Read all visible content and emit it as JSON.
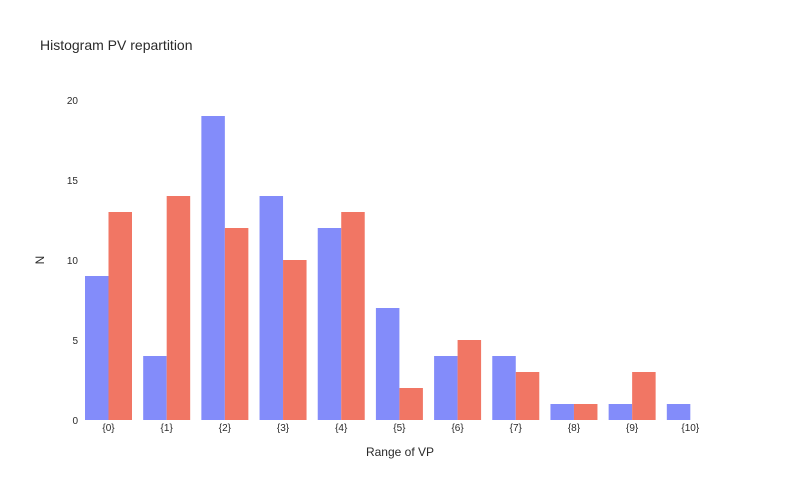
{
  "chart_data": {
    "type": "bar",
    "title": "Histogram PV repartition",
    "xlabel": "Range of VP",
    "ylabel": "N",
    "categories": [
      "{0}",
      "{1}",
      "{2}",
      "{3}",
      "{4}",
      "{5}",
      "{6}",
      "{7}",
      "{8}",
      "{9}",
      "{10}"
    ],
    "series": [
      {
        "color": "#838cfa",
        "values": [
          9,
          4,
          19,
          14,
          12,
          7,
          4,
          4,
          1,
          1,
          1
        ]
      },
      {
        "color": "#f17664",
        "values": [
          13,
          14,
          12,
          10,
          13,
          2,
          5,
          3,
          1,
          3,
          0
        ]
      }
    ],
    "ylim": [
      0,
      20
    ],
    "yticks": [
      0,
      5,
      10,
      15,
      20
    ],
    "grid": false,
    "legend": "none"
  }
}
